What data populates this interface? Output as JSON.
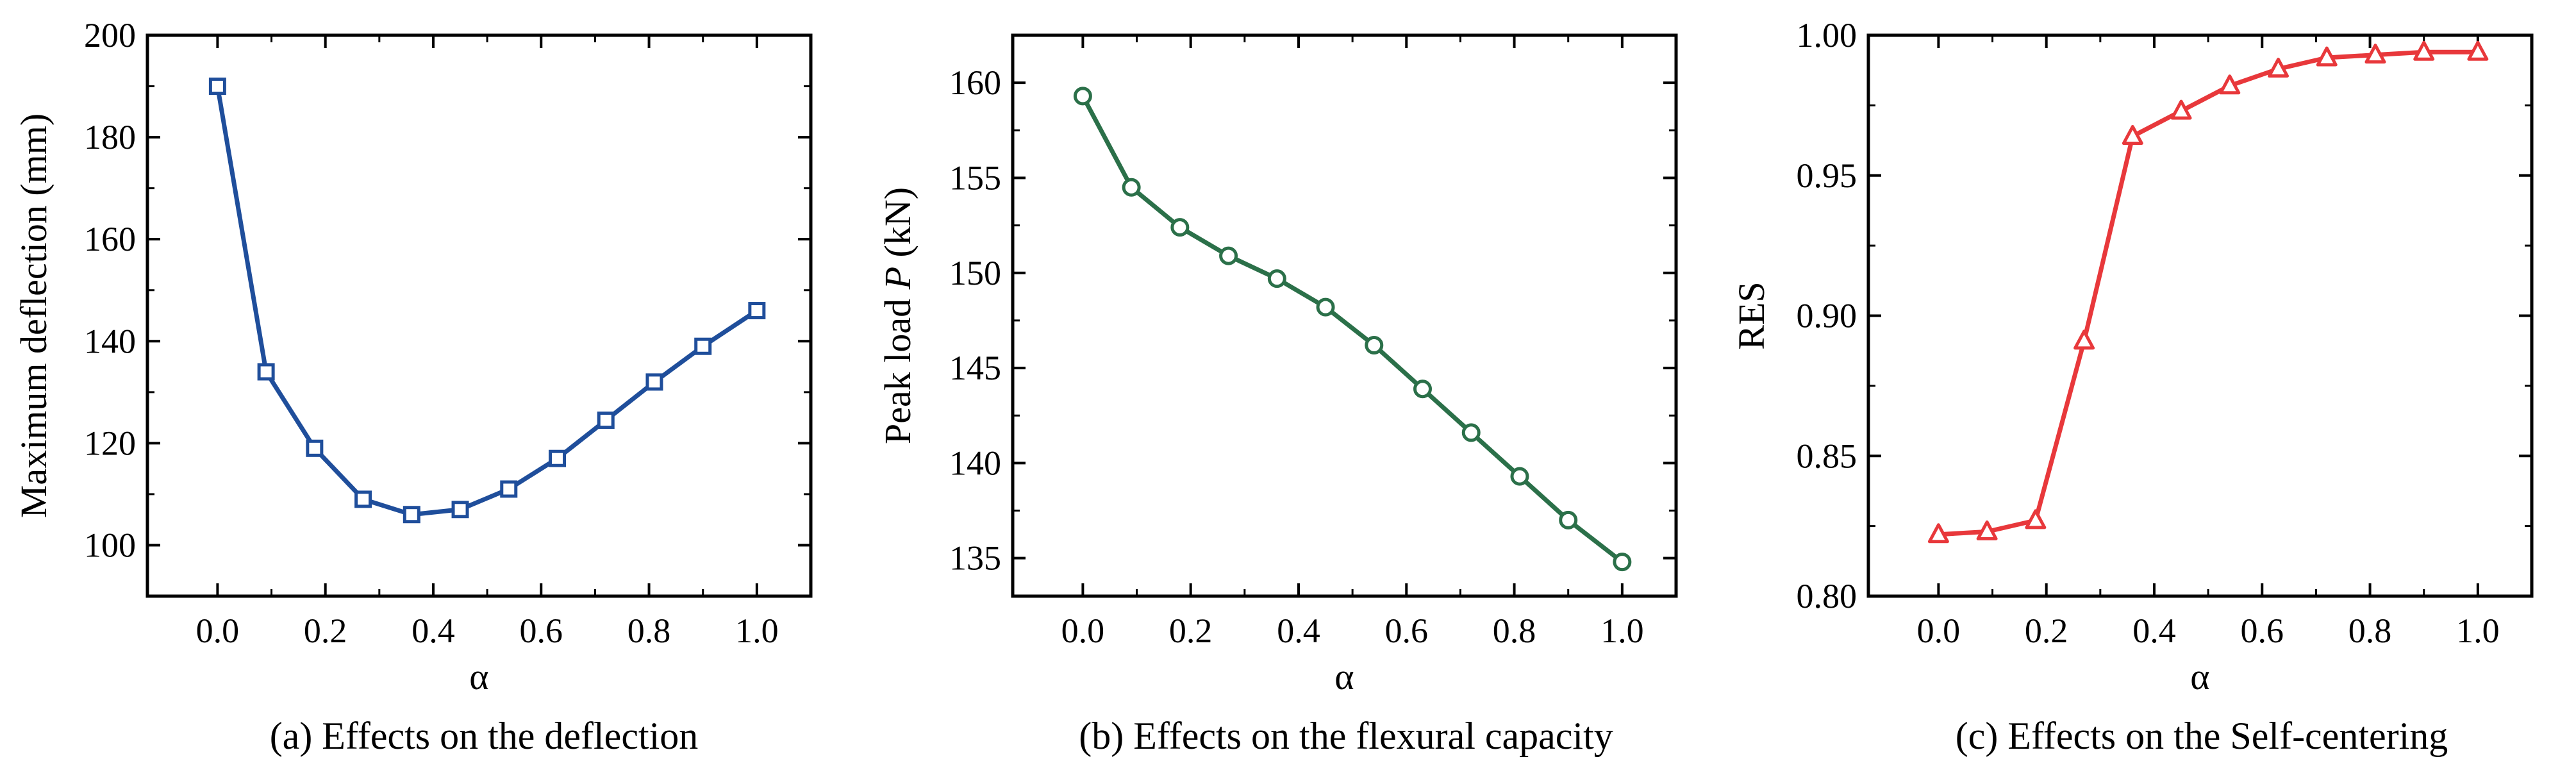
{
  "figure": {
    "panels": [
      {
        "caption": "(a) Effects on the deflection"
      },
      {
        "caption": "(b) Effects on the flexural capacity"
      },
      {
        "caption": "(c) Effects on the Self-centering"
      }
    ]
  },
  "chart_data": [
    {
      "type": "line",
      "title": "",
      "xlabel": "α",
      "ylabel": "Maximum deflection (mm)",
      "xlim": [
        -0.13,
        1.1
      ],
      "ylim": [
        90,
        200
      ],
      "xticks": [
        "0.0",
        "0.2",
        "0.4",
        "0.6",
        "0.8",
        "1.0"
      ],
      "yticks": [
        "100",
        "120",
        "140",
        "160",
        "180",
        "200"
      ],
      "grid": false,
      "color": "#1f4e9b",
      "marker": "square",
      "series": [
        {
          "x": [
            0.0,
            0.09,
            0.18,
            0.27,
            0.36,
            0.45,
            0.54,
            0.63,
            0.72,
            0.81,
            0.9,
            1.0
          ],
          "values": [
            190,
            134,
            119,
            109,
            106,
            107,
            111,
            117,
            124.5,
            132,
            139,
            146
          ]
        }
      ]
    },
    {
      "type": "line",
      "title": "",
      "xlabel": "α",
      "ylabel": "Peak load P (kN)",
      "xlim": [
        -0.13,
        1.1
      ],
      "ylim": [
        133,
        162.5
      ],
      "xticks": [
        "0.0",
        "0.2",
        "0.4",
        "0.6",
        "0.8",
        "1.0"
      ],
      "yticks": [
        "135",
        "140",
        "145",
        "150",
        "155",
        "160"
      ],
      "grid": false,
      "color": "#2b7049",
      "marker": "circle",
      "series": [
        {
          "x": [
            0.0,
            0.09,
            0.18,
            0.27,
            0.36,
            0.45,
            0.54,
            0.63,
            0.72,
            0.81,
            0.9,
            1.0
          ],
          "values": [
            159.3,
            154.5,
            152.4,
            150.9,
            149.7,
            148.2,
            146.2,
            143.9,
            141.6,
            139.3,
            137.0,
            134.8
          ]
        }
      ]
    },
    {
      "type": "line",
      "title": "",
      "xlabel": "α",
      "ylabel": "RES",
      "xlim": [
        -0.13,
        1.1
      ],
      "ylim": [
        0.8,
        1.0
      ],
      "xticks": [
        "0.0",
        "0.2",
        "0.4",
        "0.6",
        "0.8",
        "1.0"
      ],
      "yticks": [
        "0.80",
        "0.85",
        "0.90",
        "0.95",
        "1.00"
      ],
      "grid": false,
      "color": "#e8383b",
      "marker": "triangle",
      "series": [
        {
          "x": [
            0.0,
            0.09,
            0.18,
            0.27,
            0.36,
            0.45,
            0.54,
            0.63,
            0.72,
            0.81,
            0.9,
            1.0
          ],
          "values": [
            0.822,
            0.823,
            0.827,
            0.891,
            0.964,
            0.973,
            0.982,
            0.988,
            0.992,
            0.993,
            0.994,
            0.994
          ]
        }
      ]
    }
  ]
}
